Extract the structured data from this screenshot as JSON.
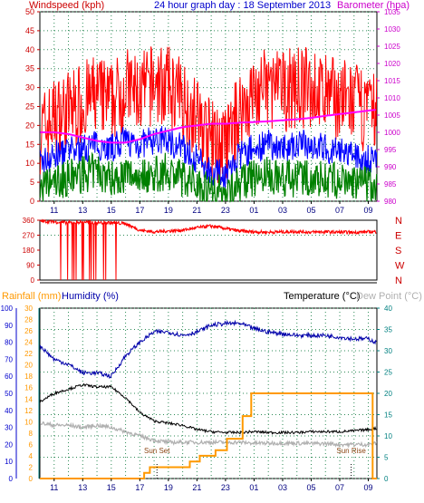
{
  "header": {
    "left_label": "Windspeed (kph)",
    "title": "24 hour graph day : 18 September 2013",
    "right_label": "Barometer (hpa)"
  },
  "time_ticks": [
    "11",
    "13",
    "15",
    "17",
    "19",
    "21",
    "23",
    "01",
    "03",
    "05",
    "07",
    "09"
  ],
  "colors": {
    "wind_gust": "#ff0000",
    "wind_avg": "#0000ff",
    "wind_low": "#008000",
    "barometer": "#ff00ff",
    "direction": "#ff0000",
    "rainfall": "#ff9900",
    "humidity": "#0000aa",
    "temperature": "#000000",
    "dew_point": "#b0b0b0",
    "axis_blue": "#0000cc",
    "axis_magenta": "#cc00cc",
    "axis_red": "#cc0000",
    "axis_teal": "#008080"
  },
  "chart_data": [
    {
      "type": "line",
      "name": "wind_barometer",
      "x_ticks": [
        "11",
        "13",
        "15",
        "17",
        "19",
        "21",
        "23",
        "01",
        "03",
        "05",
        "07",
        "09"
      ],
      "ylim_left": [
        0,
        50
      ],
      "yticks_left": [
        0,
        5,
        10,
        15,
        20,
        25,
        30,
        35,
        40,
        45,
        50
      ],
      "ylim_right": [
        980,
        1035
      ],
      "yticks_right": [
        980,
        985,
        990,
        995,
        1000,
        1005,
        1010,
        1015,
        1020,
        1025,
        1030,
        1035
      ],
      "grid": true,
      "hours": [
        10,
        11,
        12,
        13,
        14,
        15,
        16,
        17,
        18,
        19,
        20,
        21,
        22,
        23,
        24,
        25,
        26,
        27,
        28,
        29,
        30,
        31,
        32,
        33,
        34
      ],
      "series": [
        {
          "name": "Windspeed",
          "key": "gust",
          "values": [
            18,
            22,
            24,
            26,
            28,
            26,
            30,
            28,
            31,
            30,
            27,
            22,
            16,
            14,
            24,
            28,
            30,
            29,
            30,
            30,
            28,
            27,
            26,
            23,
            24
          ]
        },
        {
          "name": "Windspeed",
          "key": "avg",
          "values": [
            10,
            12,
            13,
            14,
            15,
            14,
            16,
            15,
            16,
            16,
            14,
            11,
            8,
            7,
            12,
            14,
            15,
            14,
            15,
            15,
            14,
            13,
            12,
            11,
            12
          ]
        },
        {
          "name": "Windspeed",
          "key": "low",
          "values": [
            3,
            5,
            6,
            7,
            8,
            6,
            7,
            7,
            7,
            8,
            6,
            5,
            3,
            2,
            5,
            6,
            7,
            6,
            6,
            6,
            6,
            5,
            5,
            4,
            5
          ]
        },
        {
          "name": "Barometer",
          "key": "baro",
          "values": [
            1000,
            1000,
            999.5,
            998.5,
            997.5,
            997,
            997,
            998,
            999.5,
            1000.5,
            1001.5,
            1002,
            1002.5,
            1002.5,
            1002.8,
            1003,
            1003.2,
            1003.5,
            1003.8,
            1004.2,
            1004.8,
            1005.3,
            1005.8,
            1006.3,
            1006.8
          ]
        }
      ]
    },
    {
      "type": "line",
      "name": "wind_direction",
      "x_ticks": [
        "11",
        "13",
        "15",
        "17",
        "19",
        "21",
        "23",
        "01",
        "03",
        "05",
        "07",
        "09"
      ],
      "ylim": [
        0,
        360
      ],
      "yticks": [
        0,
        90,
        180,
        270,
        360
      ],
      "compass": [
        "N",
        "W",
        "S",
        "E",
        "N"
      ],
      "hours": [
        10,
        11,
        12,
        13,
        14,
        15,
        16,
        17,
        18,
        19,
        20,
        21,
        22,
        23,
        24,
        25,
        26,
        27,
        28,
        29,
        30,
        31,
        32,
        33,
        34
      ],
      "values": [
        355,
        350,
        345,
        350,
        345,
        345,
        340,
        300,
        290,
        295,
        300,
        315,
        325,
        310,
        295,
        290,
        288,
        290,
        292,
        288,
        290,
        288,
        287,
        290,
        292
      ]
    },
    {
      "type": "line",
      "name": "rain_humidity_temperature",
      "labels": {
        "rainfall": "Rainfall (mm)",
        "humidity": "Humidity (%)",
        "temperature": "Temperature (°C)",
        "dew_point": "Dew Point (°C)"
      },
      "x_ticks": [
        "11",
        "13",
        "15",
        "17",
        "19",
        "21",
        "23",
        "01",
        "03",
        "05",
        "07",
        "09"
      ],
      "ylim_humidity": [
        0,
        100
      ],
      "yticks_humidity": [
        0,
        10,
        20,
        30,
        40,
        50,
        60,
        70,
        80,
        90,
        100
      ],
      "ylim_rain": [
        0,
        30
      ],
      "yticks_rain": [
        0,
        2,
        4,
        6,
        8,
        10,
        12,
        14,
        16,
        18,
        20,
        22,
        24,
        26,
        28,
        30
      ],
      "ylim_temp": [
        0,
        40
      ],
      "yticks_temp": [
        0,
        5,
        10,
        15,
        20,
        25,
        30,
        35,
        40
      ],
      "grid": true,
      "annotations": [
        {
          "text": "Sun Set",
          "hour": 18.2
        },
        {
          "text": "Sun Rise",
          "hour": 31.8
        }
      ],
      "hours": [
        10,
        11,
        12,
        13,
        14,
        15,
        16,
        17,
        18,
        19,
        20,
        21,
        22,
        23,
        24,
        25,
        26,
        27,
        28,
        29,
        30,
        31,
        32,
        33,
        34
      ],
      "series": [
        {
          "name": "Humidity",
          "key": "hum",
          "values": [
            78,
            70,
            67,
            62,
            62,
            60,
            72,
            80,
            86,
            86,
            84,
            86,
            90,
            91,
            91,
            88,
            86,
            85,
            84,
            84,
            84,
            83,
            82,
            82,
            78
          ]
        },
        {
          "name": "Temperature",
          "key": "temp",
          "values": [
            18,
            20,
            21,
            22,
            21.5,
            21.5,
            19,
            15.5,
            13.5,
            13,
            12.5,
            11.5,
            11,
            10.8,
            10.8,
            11,
            10.8,
            10.8,
            10.8,
            11,
            11,
            11,
            11.2,
            11.5,
            12
          ]
        },
        {
          "name": "Dew Point",
          "key": "dew",
          "values": [
            13,
            12.5,
            12.5,
            12,
            12.5,
            12,
            11,
            10,
            9,
            8.5,
            8.5,
            8.5,
            8.5,
            8.5,
            8.5,
            8.3,
            8.3,
            8.3,
            8.3,
            8.2,
            8.2,
            8,
            8,
            8,
            8.5
          ]
        },
        {
          "name": "Rainfall",
          "key": "rain",
          "values": [
            0,
            0,
            0,
            0,
            0,
            0,
            0,
            0,
            2,
            3,
            3,
            5,
            7,
            11,
            15,
            15,
            15,
            15,
            15,
            15,
            15,
            15,
            15,
            15,
            0
          ]
        }
      ]
    }
  ]
}
